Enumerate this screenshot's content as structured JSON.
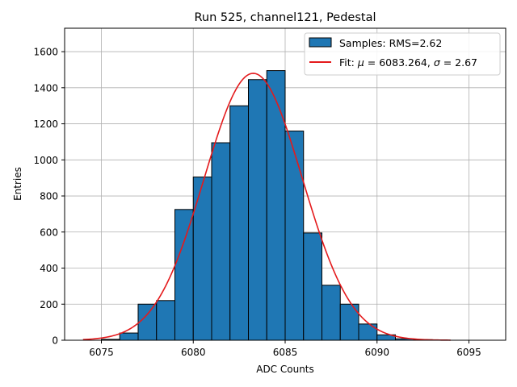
{
  "chart_data": {
    "type": "bar",
    "title": "Run 525, channel121, Pedestal",
    "xlabel": "ADC Counts",
    "ylabel": "Entries",
    "xlim": [
      6073,
      6097
    ],
    "ylim": [
      0,
      1730
    ],
    "xticks": [
      6075,
      6080,
      6085,
      6090,
      6095
    ],
    "yticks": [
      0,
      200,
      400,
      600,
      800,
      1000,
      1200,
      1400,
      1600
    ],
    "grid": true,
    "legend_position": "top-right",
    "histogram": {
      "name": "Samples: RMS=2.62",
      "color": "#1f77b4",
      "edge_color": "#000000",
      "bin_edges": [
        6075,
        6076,
        6077,
        6078,
        6079,
        6080,
        6081,
        6082,
        6083,
        6084,
        6085,
        6086,
        6087,
        6088,
        6089,
        6090,
        6091,
        6092,
        6093
      ],
      "counts": [
        5,
        40,
        200,
        220,
        725,
        905,
        1095,
        1300,
        1445,
        1495,
        1160,
        595,
        305,
        200,
        90,
        30,
        8,
        3
      ]
    },
    "fit": {
      "name_prefix": "Fit: ",
      "mu_symbol": "μ",
      "mu_value": " = 6083.264, ",
      "sigma_symbol": "σ",
      "sigma_value": " = 2.67",
      "mu": 6083.264,
      "sigma": 2.67,
      "amplitude": 1480,
      "x_range": [
        6074,
        6094
      ],
      "color": "#e41a1c"
    }
  }
}
